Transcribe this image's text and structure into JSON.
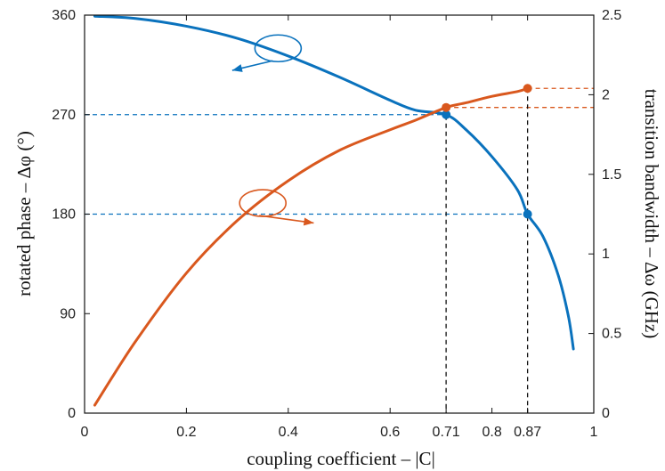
{
  "chart_data": {
    "type": "line",
    "title": "",
    "xlabel": "coupling coefficient – |C|",
    "ylabel_left": "rotated phase – Δφ (°)",
    "ylabel_right": "transition bandwidth – Δω (GHz)",
    "xlim": [
      0,
      1
    ],
    "ylim_left": [
      0,
      360
    ],
    "ylim_right": [
      0,
      2.5
    ],
    "grid": false,
    "legend": "none",
    "x_ticks": [
      {
        "value": 0,
        "label": "0"
      },
      {
        "value": 0.2,
        "label": "0.2"
      },
      {
        "value": 0.4,
        "label": "0.4"
      },
      {
        "value": 0.6,
        "label": "0.6"
      },
      {
        "value": 0.71,
        "label": "0.71"
      },
      {
        "value": 0.8,
        "label": "0.8"
      },
      {
        "value": 0.87,
        "label": "0.87"
      },
      {
        "value": 1,
        "label": "1"
      }
    ],
    "y_left_ticks": [
      {
        "value": 0,
        "label": "0"
      },
      {
        "value": 90,
        "label": "90"
      },
      {
        "value": 180,
        "label": "180"
      },
      {
        "value": 270,
        "label": "270"
      },
      {
        "value": 360,
        "label": "360"
      }
    ],
    "y_right_ticks": [
      {
        "value": 0,
        "label": "0"
      },
      {
        "value": 0.5,
        "label": "0.5"
      },
      {
        "value": 1,
        "label": "1"
      },
      {
        "value": 1.5,
        "label": "1.5"
      },
      {
        "value": 2,
        "label": "2"
      },
      {
        "value": 2.5,
        "label": "2.5"
      }
    ],
    "series": [
      {
        "axis": "left",
        "color": "#0a72bd",
        "x": [
          0.02,
          0.1,
          0.2,
          0.3,
          0.4,
          0.5,
          0.6,
          0.65,
          0.71,
          0.75,
          0.8,
          0.85,
          0.87,
          0.9,
          0.93,
          0.95,
          0.96
        ],
        "y": [
          359,
          357,
          350,
          339,
          323,
          304,
          283,
          274,
          270,
          256,
          232,
          202,
          180,
          160,
          125,
          88,
          58
        ]
      },
      {
        "axis": "right",
        "color": "#d9581e",
        "x": [
          0.02,
          0.1,
          0.2,
          0.3,
          0.4,
          0.5,
          0.6,
          0.65,
          0.71,
          0.75,
          0.8,
          0.85,
          0.87
        ],
        "y": [
          0.05,
          0.45,
          0.88,
          1.21,
          1.46,
          1.65,
          1.78,
          1.84,
          1.92,
          1.95,
          1.99,
          2.02,
          2.04
        ]
      }
    ],
    "markers": [
      {
        "axis": "left",
        "color": "#0a72bd",
        "x": 0.71,
        "y": 270
      },
      {
        "axis": "left",
        "color": "#0a72bd",
        "x": 0.87,
        "y": 180
      },
      {
        "axis": "right",
        "color": "#d9581e",
        "x": 0.71,
        "y": 1.92
      },
      {
        "axis": "right",
        "color": "#d9581e",
        "x": 0.87,
        "y": 2.04
      }
    ],
    "reference_lines": [
      {
        "kind": "horizontal",
        "axis": "left",
        "color": "#0a72bd",
        "y": 270,
        "x_from": 0,
        "x_to": 0.71
      },
      {
        "kind": "horizontal",
        "axis": "left",
        "color": "#0a72bd",
        "y": 180,
        "x_from": 0,
        "x_to": 0.87
      },
      {
        "kind": "horizontal",
        "axis": "right",
        "color": "#d9581e",
        "y": 1.92,
        "x_from": 0.71,
        "x_to": 1
      },
      {
        "kind": "horizontal",
        "axis": "right",
        "color": "#d9581e",
        "y": 2.04,
        "x_from": 0.87,
        "x_to": 1
      },
      {
        "kind": "vertical",
        "color": "#111111",
        "x": 0.71
      },
      {
        "kind": "vertical",
        "color": "#111111",
        "x": 0.87
      }
    ],
    "axis_indicators": [
      {
        "series_color": "#0a72bd",
        "points_to": "left axis",
        "ellipse_center": {
          "x": 0.38,
          "y": 330
        },
        "arrow_to": {
          "x": 0.29,
          "y": 310
        }
      },
      {
        "series_color": "#d9581e",
        "points_to": "right axis",
        "ellipse_center": {
          "x": 0.35,
          "y": 190
        },
        "arrow_to": {
          "x": 0.45,
          "y": 172
        }
      }
    ]
  }
}
